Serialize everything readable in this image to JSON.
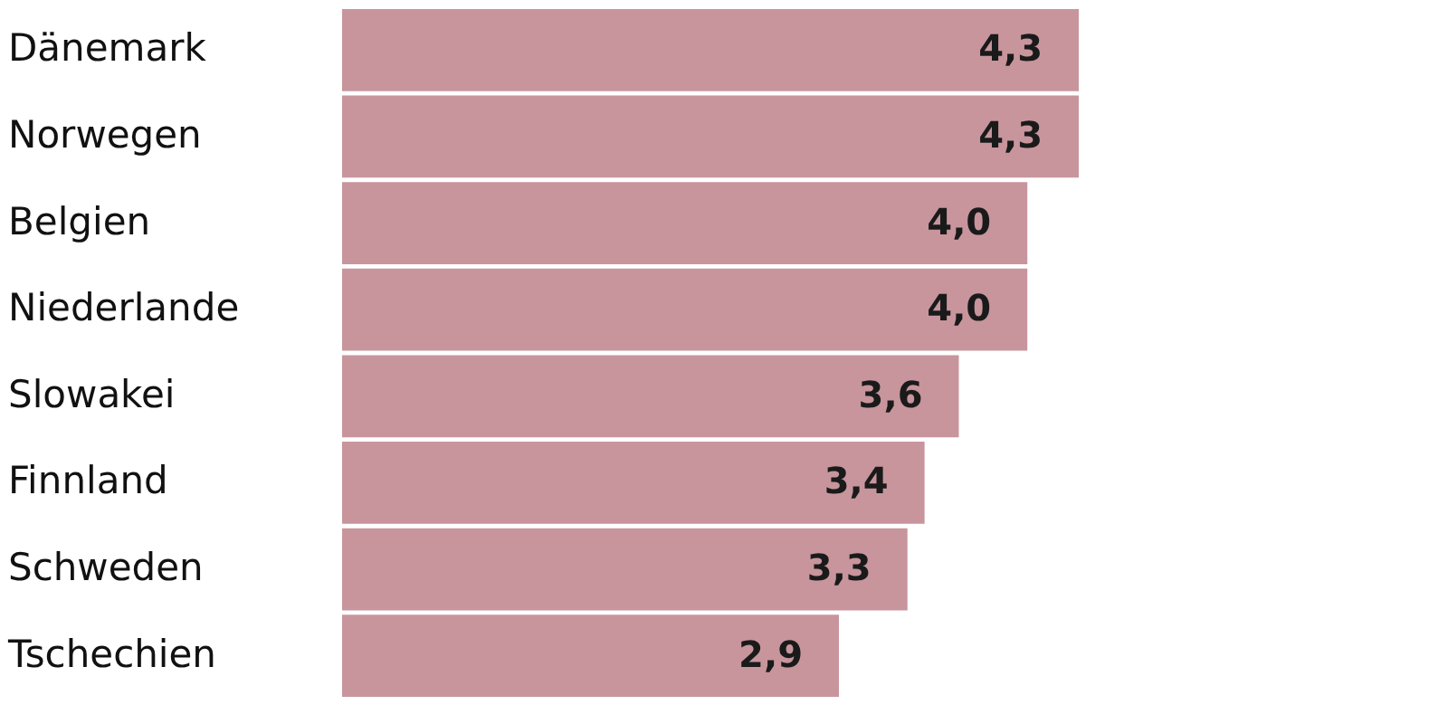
{
  "chart_data": {
    "type": "bar",
    "orientation": "horizontal",
    "categories": [
      "Dänemark",
      "Norwegen",
      "Belgien",
      "Niederlande",
      "Slowakei",
      "Finnland",
      "Schweden",
      "Tschechien"
    ],
    "values": [
      4.3,
      4.3,
      4.0,
      4.0,
      3.6,
      3.4,
      3.3,
      2.9
    ],
    "value_labels": [
      "4,3",
      "4,3",
      "4,0",
      "4,0",
      "3,6",
      "3,4",
      "3,3",
      "2,9"
    ],
    "color": "#c8959d"
  }
}
